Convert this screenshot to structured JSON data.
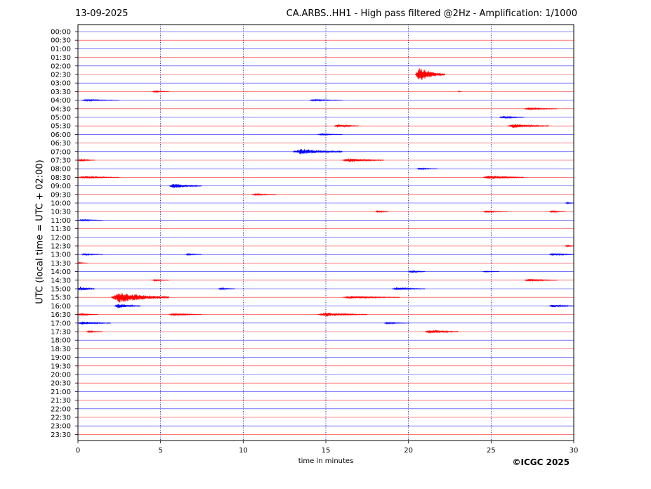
{
  "header": {
    "date": "13-09-2025",
    "title": "CA.ARBS..HH1 - High pass filtered @2Hz - Amplification: 1/1000"
  },
  "footer": {
    "copyright": "©ICGC 2025"
  },
  "colors": {
    "trace_even": "#0000ff",
    "trace_odd": "#ff0000",
    "gridline": "#00008b",
    "axis": "#000000"
  },
  "chart_data": {
    "type": "line",
    "title": "CA.ARBS..HH1 - High pass filtered @2Hz - Amplification: 1/1000",
    "xlabel": "time in minutes",
    "ylabel": "UTC (local time = UTC + 02:00)",
    "xlim": [
      0,
      30
    ],
    "x_ticks": [
      "0",
      "5",
      "10",
      "15",
      "20",
      "25",
      "30"
    ],
    "vertical_gridlines_at": [
      5,
      10,
      15,
      20,
      25
    ],
    "rows": [
      "00:00",
      "00:30",
      "01:00",
      "01:30",
      "02:00",
      "02:30",
      "03:00",
      "03:30",
      "04:00",
      "04:30",
      "05:00",
      "05:30",
      "06:00",
      "06:30",
      "07:00",
      "07:30",
      "08:00",
      "08:30",
      "09:00",
      "09:30",
      "10:00",
      "10:30",
      "11:00",
      "11:30",
      "12:00",
      "12:30",
      "13:00",
      "13:30",
      "14:00",
      "14:30",
      "15:00",
      "15:30",
      "16:00",
      "16:30",
      "17:00",
      "17:30",
      "18:00",
      "18:30",
      "19:00",
      "19:30",
      "20:00",
      "20:30",
      "21:00",
      "21:30",
      "22:00",
      "22:30",
      "23:00",
      "23:30"
    ],
    "trace_colors_alternate": [
      "blue",
      "red"
    ],
    "events": [
      {
        "row": "02:30",
        "start_min": 20.4,
        "end_min": 22.2,
        "amplitude": 10
      },
      {
        "row": "03:30",
        "start_min": 4.5,
        "end_min": 5.5,
        "amplitude": 1.5
      },
      {
        "row": "03:30",
        "start_min": 23.0,
        "end_min": 23.2,
        "amplitude": 1.5
      },
      {
        "row": "04:00",
        "start_min": 0.2,
        "end_min": 2.5,
        "amplitude": 1.5
      },
      {
        "row": "04:00",
        "start_min": 14.0,
        "end_min": 16.0,
        "amplitude": 1.5
      },
      {
        "row": "04:30",
        "start_min": 27.0,
        "end_min": 29.0,
        "amplitude": 2
      },
      {
        "row": "05:00",
        "start_min": 25.5,
        "end_min": 27.0,
        "amplitude": 2
      },
      {
        "row": "05:30",
        "start_min": 15.5,
        "end_min": 17.0,
        "amplitude": 2.5
      },
      {
        "row": "05:30",
        "start_min": 26.0,
        "end_min": 28.5,
        "amplitude": 3
      },
      {
        "row": "06:00",
        "start_min": 14.5,
        "end_min": 16.0,
        "amplitude": 1.5
      },
      {
        "row": "07:00",
        "start_min": 13.0,
        "end_min": 16.0,
        "amplitude": 4.5
      },
      {
        "row": "07:30",
        "start_min": 0.0,
        "end_min": 1.0,
        "amplitude": 2
      },
      {
        "row": "07:30",
        "start_min": 16.0,
        "end_min": 18.5,
        "amplitude": 3
      },
      {
        "row": "08:00",
        "start_min": 20.5,
        "end_min": 21.8,
        "amplitude": 1.5
      },
      {
        "row": "08:30",
        "start_min": 0.0,
        "end_min": 2.5,
        "amplitude": 2
      },
      {
        "row": "08:30",
        "start_min": 24.5,
        "end_min": 27.0,
        "amplitude": 3
      },
      {
        "row": "09:00",
        "start_min": 5.5,
        "end_min": 7.5,
        "amplitude": 3.5
      },
      {
        "row": "09:30",
        "start_min": 10.5,
        "end_min": 12.0,
        "amplitude": 1.5
      },
      {
        "row": "10:00",
        "start_min": 29.5,
        "end_min": 30.0,
        "amplitude": 1.5
      },
      {
        "row": "10:30",
        "start_min": 18.0,
        "end_min": 18.8,
        "amplitude": 2
      },
      {
        "row": "10:30",
        "start_min": 24.5,
        "end_min": 26.0,
        "amplitude": 1.5
      },
      {
        "row": "10:30",
        "start_min": 28.5,
        "end_min": 29.5,
        "amplitude": 1.5
      },
      {
        "row": "11:00",
        "start_min": 0.0,
        "end_min": 1.5,
        "amplitude": 1.5
      },
      {
        "row": "12:30",
        "start_min": 29.5,
        "end_min": 30.0,
        "amplitude": 1.5
      },
      {
        "row": "13:00",
        "start_min": 0.2,
        "end_min": 1.5,
        "amplitude": 1.5
      },
      {
        "row": "13:00",
        "start_min": 6.5,
        "end_min": 7.5,
        "amplitude": 1.5
      },
      {
        "row": "13:00",
        "start_min": 28.5,
        "end_min": 30.0,
        "amplitude": 2
      },
      {
        "row": "13:30",
        "start_min": 0.0,
        "end_min": 0.6,
        "amplitude": 1.5
      },
      {
        "row": "14:00",
        "start_min": 20.0,
        "end_min": 21.0,
        "amplitude": 2
      },
      {
        "row": "14:00",
        "start_min": 24.5,
        "end_min": 25.5,
        "amplitude": 1
      },
      {
        "row": "14:30",
        "start_min": 4.5,
        "end_min": 5.5,
        "amplitude": 1.5
      },
      {
        "row": "14:30",
        "start_min": 27.0,
        "end_min": 29.0,
        "amplitude": 2
      },
      {
        "row": "15:00",
        "start_min": 0.0,
        "end_min": 1.0,
        "amplitude": 3.5
      },
      {
        "row": "15:00",
        "start_min": 8.5,
        "end_min": 9.5,
        "amplitude": 1.5
      },
      {
        "row": "15:00",
        "start_min": 19.0,
        "end_min": 21.0,
        "amplitude": 2
      },
      {
        "row": "15:30",
        "start_min": 2.0,
        "end_min": 5.5,
        "amplitude": 8
      },
      {
        "row": "15:30",
        "start_min": 16.0,
        "end_min": 19.5,
        "amplitude": 2
      },
      {
        "row": "16:00",
        "start_min": 2.2,
        "end_min": 3.8,
        "amplitude": 3.5
      },
      {
        "row": "16:00",
        "start_min": 28.5,
        "end_min": 30.0,
        "amplitude": 2.5
      },
      {
        "row": "16:30",
        "start_min": 0.0,
        "end_min": 1.2,
        "amplitude": 2
      },
      {
        "row": "16:30",
        "start_min": 5.5,
        "end_min": 7.5,
        "amplitude": 2
      },
      {
        "row": "16:30",
        "start_min": 14.5,
        "end_min": 17.5,
        "amplitude": 3
      },
      {
        "row": "17:00",
        "start_min": 0.0,
        "end_min": 2.0,
        "amplitude": 2.5
      },
      {
        "row": "17:00",
        "start_min": 18.5,
        "end_min": 20.0,
        "amplitude": 1.5
      },
      {
        "row": "17:30",
        "start_min": 0.5,
        "end_min": 1.5,
        "amplitude": 1.5
      },
      {
        "row": "17:30",
        "start_min": 21.0,
        "end_min": 23.0,
        "amplitude": 3
      }
    ]
  }
}
